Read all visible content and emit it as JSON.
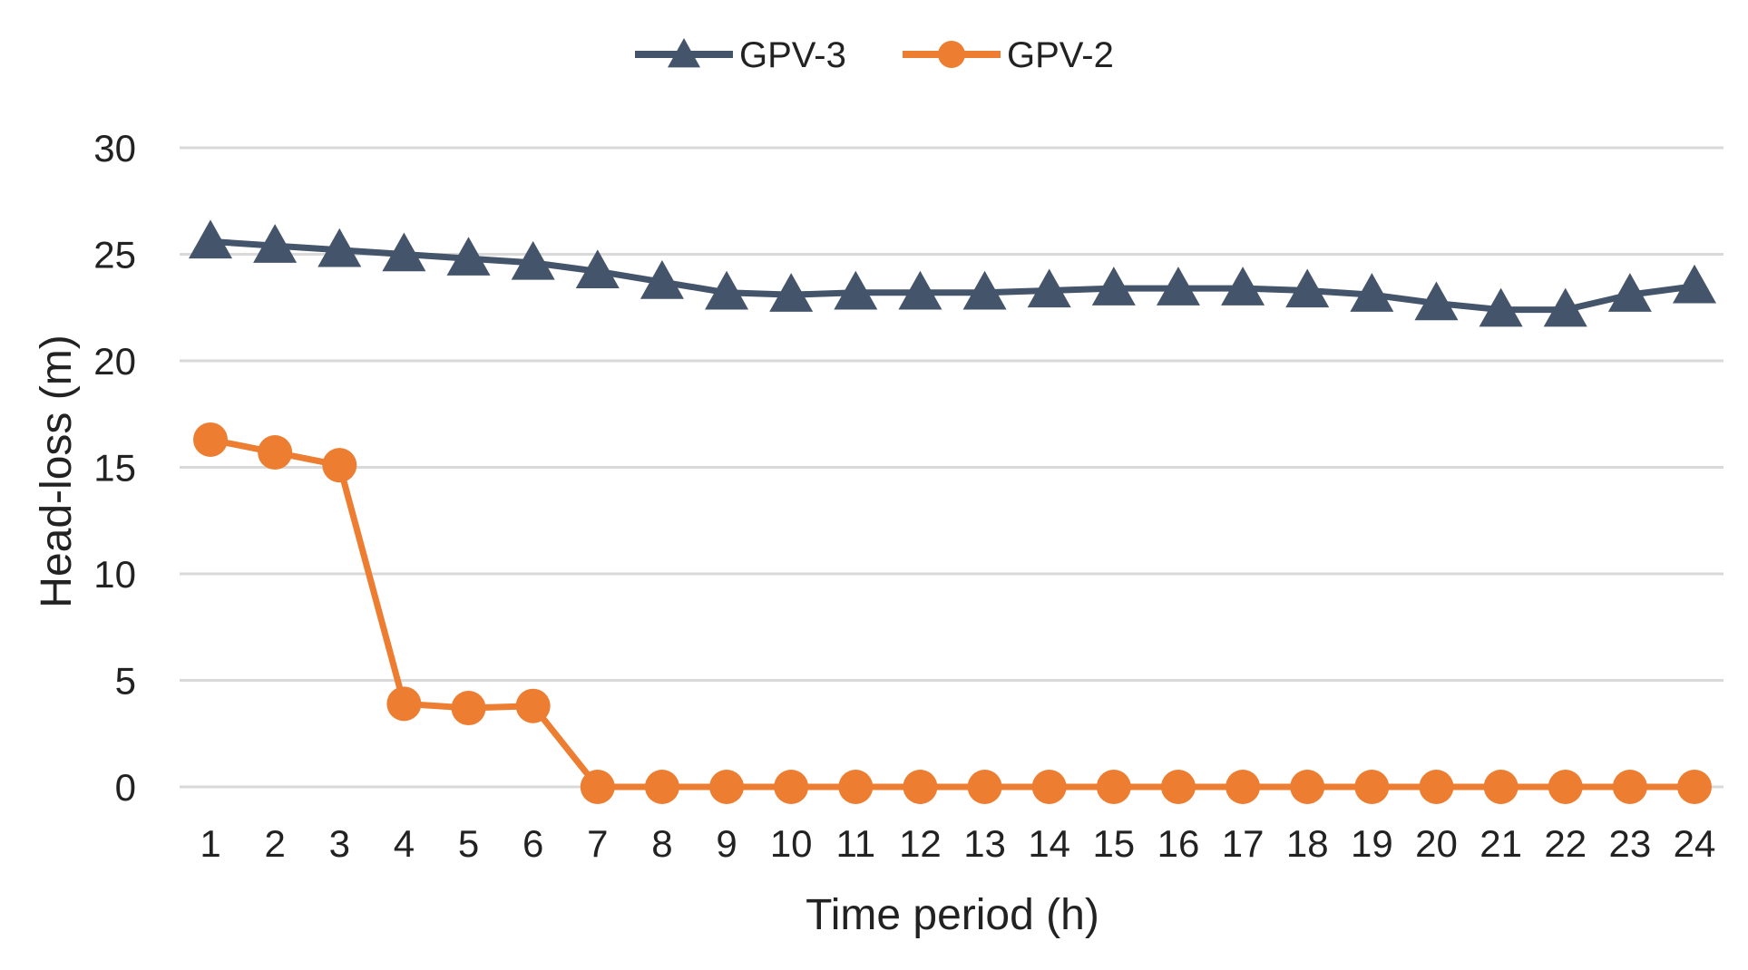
{
  "chart_data": {
    "type": "line",
    "title": "",
    "xlabel": "Time period (h)",
    "ylabel": "Head-loss (m)",
    "ylim": [
      0,
      30
    ],
    "yticks": [
      "0",
      "5",
      "10",
      "15",
      "20",
      "25",
      "30"
    ],
    "categories": [
      "1",
      "2",
      "3",
      "4",
      "5",
      "6",
      "7",
      "8",
      "9",
      "10",
      "11",
      "12",
      "13",
      "14",
      "15",
      "16",
      "17",
      "18",
      "19",
      "20",
      "21",
      "22",
      "23",
      "24"
    ],
    "grid": true,
    "legend_position": "top-center",
    "series": [
      {
        "name": "GPV-3",
        "color": "#44546a",
        "marker": "triangle",
        "values": [
          25.6,
          25.4,
          25.2,
          25.0,
          24.8,
          24.6,
          24.2,
          23.7,
          23.2,
          23.1,
          23.2,
          23.2,
          23.2,
          23.3,
          23.4,
          23.4,
          23.4,
          23.3,
          23.1,
          22.7,
          22.4,
          22.4,
          23.1,
          23.5
        ]
      },
      {
        "name": "GPV-2",
        "color": "#ed7d31",
        "marker": "circle",
        "values": [
          16.3,
          15.7,
          15.1,
          3.9,
          3.7,
          3.8,
          0,
          0,
          0,
          0,
          0,
          0,
          0,
          0,
          0,
          0,
          0,
          0,
          0,
          0,
          0,
          0,
          0,
          0
        ]
      }
    ]
  }
}
